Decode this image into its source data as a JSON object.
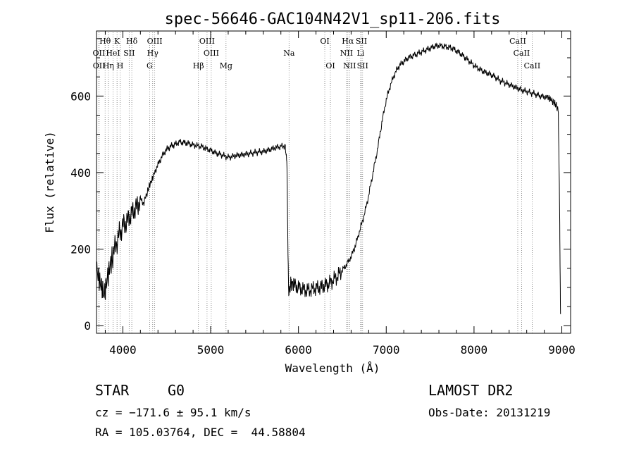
{
  "chart_data": {
    "type": "line",
    "title": "spec-56646-GAC104N42V1_sp11-206.fits",
    "xlabel": "Wavelength (Å)",
    "ylabel": "Flux (relative)",
    "xlim": [
      3700,
      9100
    ],
    "ylim": [
      -20,
      770
    ],
    "xticks": [
      4000,
      5000,
      6000,
      7000,
      8000,
      9000
    ],
    "yticks": [
      0,
      200,
      400,
      600
    ],
    "series": [
      {
        "name": "flux",
        "x": [
          3700,
          3730,
          3760,
          3790,
          3820,
          3850,
          3880,
          3920,
          3960,
          4000,
          4040,
          4080,
          4120,
          4160,
          4200,
          4240,
          4280,
          4300,
          4330,
          4360,
          4400,
          4440,
          4480,
          4520,
          4560,
          4600,
          4650,
          4700,
          4750,
          4800,
          4850,
          4900,
          4950,
          5000,
          5050,
          5100,
          5150,
          5200,
          5250,
          5300,
          5350,
          5400,
          5450,
          5500,
          5550,
          5600,
          5650,
          5700,
          5750,
          5800,
          5850,
          5870,
          5880,
          5890,
          5900,
          5920,
          5950,
          6000,
          6050,
          6100,
          6150,
          6200,
          6250,
          6300,
          6350,
          6400,
          6450,
          6500,
          6550,
          6600,
          6650,
          6700,
          6750,
          6800,
          6850,
          6900,
          6950,
          7000,
          7050,
          7100,
          7150,
          7200,
          7250,
          7300,
          7350,
          7400,
          7450,
          7500,
          7550,
          7600,
          7650,
          7700,
          7750,
          7800,
          7850,
          7900,
          7950,
          8000,
          8050,
          8100,
          8150,
          8200,
          8250,
          8300,
          8350,
          8400,
          8450,
          8500,
          8550,
          8600,
          8650,
          8700,
          8750,
          8800,
          8850,
          8880,
          8900,
          8920,
          8940,
          8960,
          8975,
          8985
        ],
        "y": [
          150,
          120,
          100,
          80,
          120,
          150,
          180,
          210,
          240,
          260,
          270,
          285,
          300,
          310,
          330,
          320,
          350,
          365,
          380,
          400,
          420,
          440,
          455,
          465,
          470,
          475,
          480,
          478,
          476,
          472,
          470,
          468,
          462,
          458,
          452,
          448,
          444,
          440,
          442,
          445,
          446,
          448,
          450,
          452,
          454,
          455,
          458,
          462,
          466,
          468,
          470,
          420,
          200,
          80,
          100,
          110,
          105,
          100,
          95,
          92,
          95,
          98,
          100,
          105,
          110,
          120,
          130,
          145,
          160,
          180,
          210,
          250,
          290,
          340,
          400,
          460,
          530,
          590,
          630,
          660,
          680,
          690,
          700,
          705,
          710,
          715,
          720,
          725,
          730,
          732,
          730,
          728,
          725,
          718,
          710,
          700,
          690,
          680,
          672,
          665,
          660,
          655,
          648,
          640,
          635,
          630,
          625,
          620,
          615,
          612,
          608,
          605,
          600,
          598,
          595,
          590,
          585,
          580,
          575,
          560,
          300,
          30
        ]
      }
    ],
    "line_markers": [
      {
        "label": "Hθ",
        "wavelength": 3798,
        "row": 1
      },
      {
        "label": "K",
        "wavelength": 3934,
        "row": 1
      },
      {
        "label": "Hδ",
        "wavelength": 4102,
        "row": 1
      },
      {
        "label": "OIII",
        "wavelength": 4363,
        "row": 1
      },
      {
        "label": "OIII",
        "wavelength": 4959,
        "row": 1
      },
      {
        "label": "OI",
        "wavelength": 6300,
        "row": 1
      },
      {
        "label": "Hα",
        "wavelength": 6563,
        "row": 1
      },
      {
        "label": "SII",
        "wavelength": 6717,
        "row": 1
      },
      {
        "label": "CaII",
        "wavelength": 8498,
        "row": 1
      },
      {
        "label": "OII",
        "wavelength": 3727,
        "row": 2
      },
      {
        "label": "HeI",
        "wavelength": 3889,
        "row": 2
      },
      {
        "label": "SII",
        "wavelength": 4072,
        "row": 2
      },
      {
        "label": "Hγ",
        "wavelength": 4340,
        "row": 2
      },
      {
        "label": "OIII",
        "wavelength": 5007,
        "row": 2
      },
      {
        "label": "Na",
        "wavelength": 5893,
        "row": 2
      },
      {
        "label": "NII",
        "wavelength": 6548,
        "row": 2
      },
      {
        "label": "Li",
        "wavelength": 6708,
        "row": 2
      },
      {
        "label": "CaII",
        "wavelength": 8542,
        "row": 2
      },
      {
        "label": "OII",
        "wavelength": 3729,
        "row": 3
      },
      {
        "label": "Hη",
        "wavelength": 3835,
        "row": 3
      },
      {
        "label": "H",
        "wavelength": 3969,
        "row": 3
      },
      {
        "label": "G",
        "wavelength": 4305,
        "row": 3
      },
      {
        "label": "Hβ",
        "wavelength": 4861,
        "row": 3
      },
      {
        "label": "Mg",
        "wavelength": 5175,
        "row": 3
      },
      {
        "label": "OI",
        "wavelength": 6364,
        "row": 3
      },
      {
        "label": "NII",
        "wavelength": 6583,
        "row": 3
      },
      {
        "label": "SII",
        "wavelength": 6731,
        "row": 3
      },
      {
        "label": "CaII",
        "wavelength": 8662,
        "row": 3
      }
    ]
  },
  "info": {
    "class": "STAR",
    "subclass": "G0",
    "survey": "LAMOST DR2",
    "cz": "cz = −171.6 ± 95.1 km/s",
    "obs_date": "Obs-Date: 20131219",
    "coords": "RA = 105.03764, DEC =  44.58804"
  }
}
